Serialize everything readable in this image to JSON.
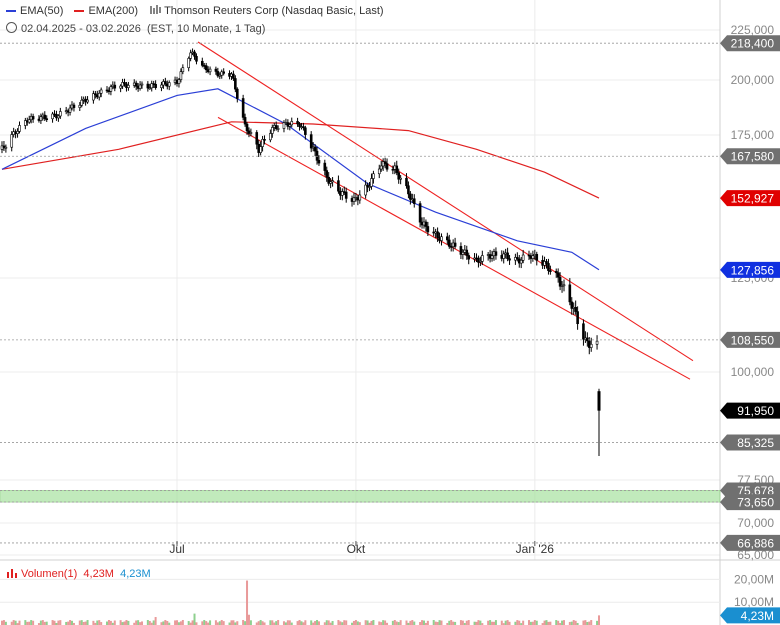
{
  "header": {
    "ema50_label": "EMA(50)",
    "ema200_label": "EMA(200)",
    "instrument": "Thomson Reuters Corp (Nasdaq Basic, Last)",
    "range": "02.04.2025 - 03.02.2026",
    "range_detail": "(EST, 10 Monate, 1 Tag)",
    "volume_label": "Volumen(1)",
    "volume_value_red": "4,23M",
    "volume_value_blue": "4,23M"
  },
  "colors": {
    "ema50": "#2b3fd6",
    "ema200": "#e02020",
    "candle": "#000000",
    "channel": "#ee2222",
    "support_band": "#a8e2a0",
    "vol_up": "#e99a9a",
    "vol_down": "#8fd08f",
    "label_red": "#e00000",
    "label_blue": "#1030e0"
  },
  "chart_data": [
    {
      "type": "line",
      "title": "Thomson Reuters Corp (Nasdaq Basic, Last)",
      "x_ticks": [
        "Jul",
        "Okt",
        "Jan '26"
      ],
      "y_ticks": [
        "225,000",
        "200,000",
        "175,000",
        "125,000",
        "100,000",
        "77,500",
        "70,000",
        "65,000"
      ],
      "ylim": [
        63,
        227
      ],
      "grid": true,
      "legend": "top-left",
      "horizontal_levels": [
        {
          "value": 218.4,
          "label": "218,400",
          "style": "grey"
        },
        {
          "value": 167.58,
          "label": "167,580",
          "style": "grey"
        },
        {
          "value": 152.927,
          "label": "152,927",
          "style": "red"
        },
        {
          "value": 127.856,
          "label": "127,856",
          "style": "blue"
        },
        {
          "value": 108.55,
          "label": "108,550",
          "style": "grey"
        },
        {
          "value": 91.95,
          "label": "91,950",
          "style": "black"
        },
        {
          "value": 85.325,
          "label": "85,325",
          "style": "grey"
        },
        {
          "value": 75.678,
          "label": "75,678",
          "style": "grey"
        },
        {
          "value": 73.65,
          "label": "73,650",
          "style": "grey"
        },
        {
          "value": 66.886,
          "label": "66,886",
          "style": "grey"
        }
      ],
      "support_zone": [
        73.65,
        75.678
      ],
      "series": [
        {
          "name": "Thomson Reuters Corp",
          "kind": "close",
          "x": [
            "2025-04-02",
            "2025-04-15",
            "2025-05-01",
            "2025-05-15",
            "2025-06-01",
            "2025-06-15",
            "2025-07-01",
            "2025-07-08",
            "2025-07-15",
            "2025-07-22",
            "2025-07-29",
            "2025-08-05",
            "2025-08-12",
            "2025-08-19",
            "2025-08-26",
            "2025-09-02",
            "2025-09-09",
            "2025-09-16",
            "2025-09-23",
            "2025-09-30",
            "2025-10-07",
            "2025-10-14",
            "2025-10-21",
            "2025-10-28",
            "2025-11-04",
            "2025-11-11",
            "2025-11-18",
            "2025-11-25",
            "2025-12-02",
            "2025-12-09",
            "2025-12-16",
            "2025-12-23",
            "2025-12-30",
            "2026-01-06",
            "2026-01-13",
            "2026-01-20",
            "2026-01-27",
            "2026-02-02",
            "2026-02-03"
          ],
          "values": [
            170,
            182,
            184,
            191,
            198,
            197,
            199,
            214,
            206,
            203,
            203,
            179,
            170,
            178,
            180,
            180,
            170,
            160,
            155,
            152,
            157,
            165,
            163,
            155,
            144,
            140,
            137,
            134,
            131,
            133,
            133,
            131,
            133,
            130,
            125,
            118,
            108,
            107,
            91.95
          ]
        },
        {
          "name": "EMA(50)",
          "x": [
            "2025-04-02",
            "2025-05-15",
            "2025-07-01",
            "2025-07-22",
            "2025-08-26",
            "2025-10-07",
            "2025-11-11",
            "2025-12-23",
            "2026-01-20",
            "2026-02-03"
          ],
          "values": [
            163,
            178,
            193,
            196,
            180,
            158,
            148,
            138,
            134,
            127.856
          ]
        },
        {
          "name": "EMA(200)",
          "x": [
            "2025-04-02",
            "2025-06-01",
            "2025-07-29",
            "2025-09-09",
            "2025-10-28",
            "2025-12-02",
            "2026-01-06",
            "2026-02-03"
          ],
          "values": [
            163,
            170,
            181,
            180,
            177,
            170,
            162,
            152.927
          ]
        }
      ]
    },
    {
      "type": "bar",
      "title": "Volumen(1)",
      "y_ticks": [
        "20,00M",
        "10,00M"
      ],
      "ylim": [
        0,
        25
      ],
      "last_value": "4,23M",
      "values_note": "daily volume in millions",
      "x": [
        "2025-06-20",
        "2025-07-10",
        "2025-08-06",
        "2025-08-07",
        "2026-02-03"
      ],
      "values": [
        3.5,
        5.0,
        19.5,
        4.5,
        4.23
      ]
    }
  ]
}
